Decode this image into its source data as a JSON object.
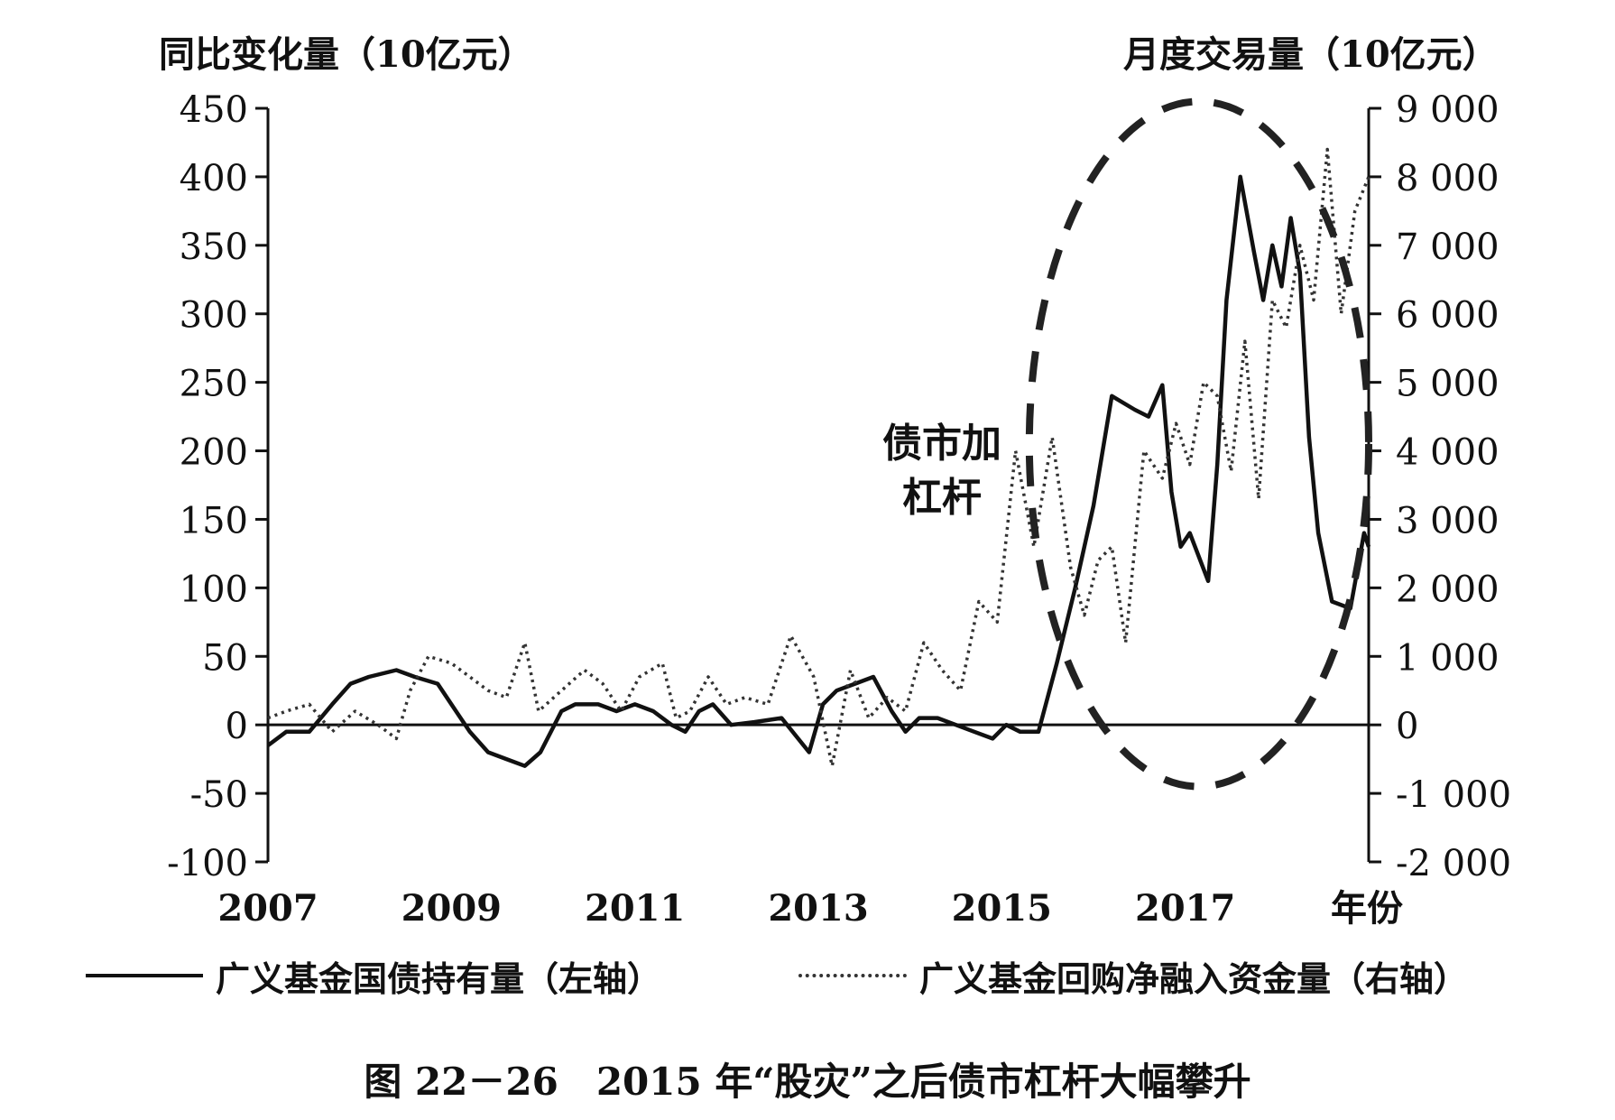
{
  "chart_data": {
    "type": "line",
    "ylabel_left": "同比变化量（10亿元）",
    "ylabel_right": "月度交易量（10亿元）",
    "x_tick_labels": [
      "2007",
      "2009",
      "2011",
      "2013",
      "2015",
      "2017"
    ],
    "x_axis_end_label": "年份",
    "y_left_ticks": [
      "450",
      "400",
      "350",
      "300",
      "250",
      "200",
      "150",
      "100",
      "50",
      "0",
      "-50",
      "-100"
    ],
    "y_right_ticks": [
      "9 000",
      "8 000",
      "7 000",
      "6 000",
      "5 000",
      "4 000",
      "3 000",
      "2 000",
      "1 000",
      "0",
      "-1 000",
      "-2 000"
    ],
    "ylim_left": [
      -100,
      450
    ],
    "ylim_right": [
      -2000,
      9000
    ],
    "xlim": [
      2007.0,
      2019.0
    ],
    "annotation": [
      "债市加",
      "杠杆"
    ],
    "series": [
      {
        "name": "广义基金国债持有量（左轴）",
        "axis": "left",
        "style": "solid",
        "x": [
          2007.0,
          2007.2,
          2007.45,
          2007.7,
          2007.9,
          2008.1,
          2008.4,
          2008.6,
          2008.85,
          2009.0,
          2009.2,
          2009.4,
          2009.6,
          2009.8,
          2009.97,
          2010.2,
          2010.35,
          2010.6,
          2010.8,
          2011.0,
          2011.2,
          2011.4,
          2011.55,
          2011.7,
          2011.85,
          2012.05,
          2012.3,
          2012.6,
          2012.9,
          2013.05,
          2013.2,
          2013.4,
          2013.6,
          2013.8,
          2013.95,
          2014.1,
          2014.3,
          2014.5,
          2014.7,
          2014.9,
          2015.05,
          2015.2,
          2015.4,
          2015.6,
          2015.8,
          2016.0,
          2016.2,
          2016.45,
          2016.6,
          2016.75,
          2016.85,
          2016.95,
          2017.05,
          2017.25,
          2017.35,
          2017.45,
          2017.6,
          2017.75,
          2017.85,
          2017.95,
          2018.05,
          2018.15,
          2018.25,
          2018.35,
          2018.45,
          2018.6,
          2018.8,
          2018.95,
          2019.0
        ],
        "values": [
          -15,
          -5,
          -5,
          15,
          30,
          35,
          40,
          35,
          30,
          15,
          -5,
          -20,
          -25,
          -30,
          -20,
          10,
          15,
          15,
          10,
          15,
          10,
          0,
          -5,
          10,
          15,
          0,
          2,
          5,
          -20,
          15,
          25,
          30,
          35,
          10,
          -5,
          5,
          5,
          0,
          -5,
          -10,
          0,
          -5,
          -5,
          45,
          100,
          160,
          240,
          230,
          225,
          248,
          170,
          130,
          140,
          105,
          190,
          310,
          400,
          345,
          310,
          350,
          320,
          370,
          330,
          210,
          140,
          90,
          85,
          140,
          130
        ]
      },
      {
        "name": "广义基金回购净融入资金量（右轴）",
        "axis": "right",
        "style": "dotted",
        "x": [
          2007.0,
          2007.2,
          2007.45,
          2007.7,
          2007.95,
          2008.2,
          2008.4,
          2008.55,
          2008.75,
          2009.0,
          2009.2,
          2009.4,
          2009.6,
          2009.8,
          2009.95,
          2010.2,
          2010.45,
          2010.65,
          2010.85,
          2011.05,
          2011.3,
          2011.45,
          2011.6,
          2011.8,
          2012.0,
          2012.2,
          2012.45,
          2012.7,
          2012.95,
          2013.15,
          2013.35,
          2013.55,
          2013.75,
          2013.95,
          2014.15,
          2014.35,
          2014.55,
          2014.75,
          2014.95,
          2015.15,
          2015.35,
          2015.55,
          2015.75,
          2015.9,
          2016.05,
          2016.2,
          2016.35,
          2016.55,
          2016.75,
          2016.9,
          2017.05,
          2017.2,
          2017.35,
          2017.5,
          2017.65,
          2017.8,
          2017.95,
          2018.1,
          2018.25,
          2018.4,
          2018.55,
          2018.7,
          2018.85,
          2019.0
        ],
        "values": [
          100,
          200,
          300,
          -100,
          200,
          0,
          -200,
          500,
          1000,
          900,
          700,
          500,
          400,
          1200,
          200,
          500,
          800,
          600,
          200,
          700,
          900,
          100,
          200,
          700,
          300,
          400,
          300,
          1300,
          700,
          -600,
          800,
          100,
          400,
          200,
          1200,
          800,
          500,
          1800,
          1500,
          4000,
          2600,
          4200,
          2300,
          1600,
          2400,
          2600,
          1200,
          4000,
          3600,
          4400,
          3800,
          5000,
          4800,
          3700,
          5600,
          3300,
          6200,
          5800,
          7000,
          6200,
          8400,
          6000,
          7500,
          8000
        ]
      }
    ],
    "ellipse": {
      "cx": 2017.15,
      "cy_left": 205,
      "rx_years": 1.85,
      "ry_left": 250
    },
    "caption": "图 22－26　2015 年“股灾”之后债市杠杆大幅攀升"
  }
}
